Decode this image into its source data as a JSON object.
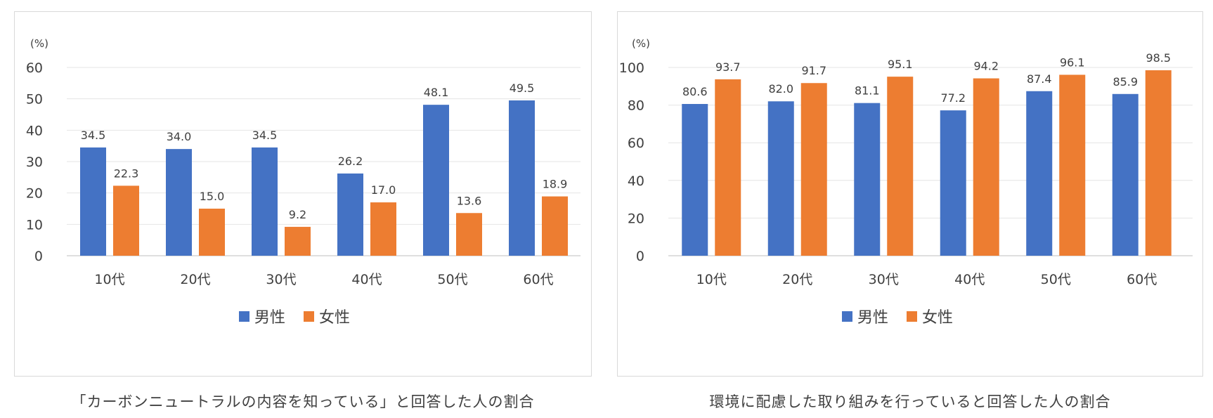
{
  "chart_data": [
    {
      "type": "bar",
      "categories": [
        "10代",
        "20代",
        "30代",
        "40代",
        "50代",
        "60代"
      ],
      "series": [
        {
          "name": "男性",
          "values": [
            34.5,
            34.0,
            34.5,
            26.2,
            48.1,
            49.5
          ],
          "color": "#4472C4"
        },
        {
          "name": "女性",
          "values": [
            22.3,
            15.0,
            9.2,
            17.0,
            13.6,
            18.9
          ],
          "color": "#ED7D31"
        }
      ],
      "ylim": [
        0,
        60
      ],
      "yticks": [
        0,
        10,
        20,
        30,
        40,
        50,
        60
      ],
      "yunit": "(%)",
      "grid": true,
      "legend": "bottom",
      "data_labels": true
    },
    {
      "type": "bar",
      "categories": [
        "10代",
        "20代",
        "30代",
        "40代",
        "50代",
        "60代"
      ],
      "series": [
        {
          "name": "男性",
          "values": [
            80.6,
            82.0,
            81.1,
            77.2,
            87.4,
            85.9
          ],
          "color": "#4472C4"
        },
        {
          "name": "女性",
          "values": [
            93.7,
            91.7,
            95.1,
            94.2,
            96.1,
            98.5
          ],
          "color": "#ED7D31"
        }
      ],
      "ylim": [
        0,
        100
      ],
      "yticks": [
        0,
        20,
        40,
        60,
        80,
        100
      ],
      "yunit": "(%)",
      "grid": true,
      "legend": "bottom",
      "data_labels": true
    }
  ],
  "captions": {
    "left": "「カーボンニュートラルの内容を知っている」と回答した人の割合",
    "right": "環境に配慮した取り組みを行っていると回答した人の割合"
  }
}
